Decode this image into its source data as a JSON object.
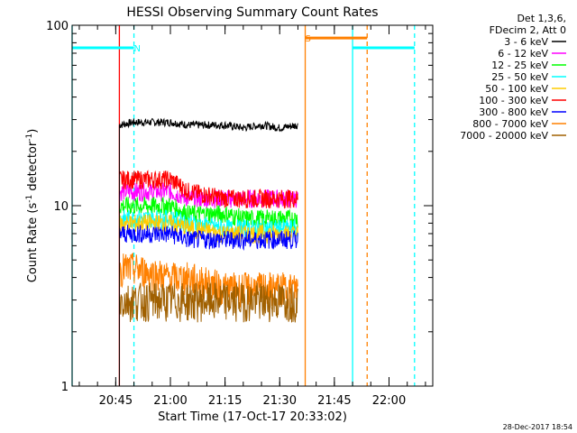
{
  "chart_data": {
    "type": "line",
    "title": "HESSI Observing Summary Count Rates",
    "xlabel": "Start Time (17-Oct-17 20:33:02)",
    "ylabel": "Count Rate (s",
    "ylabel_sup": "-1",
    "ylabel_tail": " detector",
    "ylabel_sup2": "-1",
    "ylabel_close": ")",
    "y_scale": "log",
    "ylim": [
      1,
      100
    ],
    "xlim": [
      "20:33:02",
      "22:12:00"
    ],
    "y_ticks": [
      "1",
      "10",
      "100"
    ],
    "x_ticks": [
      "20:45",
      "21:00",
      "21:15",
      "21:30",
      "21:45",
      "22:00"
    ],
    "timestamp": "28-Dec-2017 18:54",
    "legend": {
      "placement": "outside-right",
      "header": [
        "Det 1,3,6,",
        "FDecim 2, Att 0"
      ],
      "entries": [
        {
          "label": "3 - 6 keV",
          "color": "#000000"
        },
        {
          "label": "6 - 12 keV",
          "color": "#ff00ff"
        },
        {
          "label": "12 - 25 keV",
          "color": "#00ff00"
        },
        {
          "label": "25 - 50 keV",
          "color": "#00ffff"
        },
        {
          "label": "50 - 100 keV",
          "color": "#ffcc00"
        },
        {
          "label": "100 - 300 keV",
          "color": "#ff0000"
        },
        {
          "label": "300 - 800 keV",
          "color": "#0000ff"
        },
        {
          "label": "800 - 7000 keV",
          "color": "#ff8000"
        },
        {
          "label": "7000 - 20000 keV",
          "color": "#a06000"
        }
      ]
    },
    "annotations": [
      {
        "text": "N",
        "time": "20:49",
        "color": "#00ffff"
      },
      {
        "text": "S",
        "time": "21:36",
        "color": "#ff8000"
      }
    ],
    "night_segments": [
      {
        "start": "20:33:02",
        "end": "20:50",
        "value": 75
      },
      {
        "start": "21:50",
        "end": "22:07",
        "value": 75
      }
    ],
    "saa_segment": {
      "start": "21:37",
      "end": "21:54",
      "value": 85
    },
    "vertical_markers": [
      {
        "time": "20:33:02",
        "color": "#00ffff",
        "style": "solid"
      },
      {
        "time": "20:50",
        "color": "#00ffff",
        "style": "dashed"
      },
      {
        "time": "21:50",
        "color": "#00ffff",
        "style": "solid"
      },
      {
        "time": "22:07",
        "color": "#00ffff",
        "style": "dashed"
      },
      {
        "time": "20:46",
        "color": "#ff0000",
        "style": "solid"
      },
      {
        "time": "21:37",
        "color": "#ff8000",
        "style": "solid"
      },
      {
        "time": "21:54",
        "color": "#ff8000",
        "style": "dashed"
      }
    ],
    "data_window": {
      "start": "20:46",
      "end": "21:35"
    },
    "series": [
      {
        "name": "3 - 6 keV",
        "color": "#000000",
        "x": [
          "20:46",
          "20:50",
          "21:00",
          "21:05",
          "21:15",
          "21:20",
          "21:25",
          "21:30",
          "21:35"
        ],
        "y": [
          28,
          29,
          29,
          28,
          28,
          27,
          28,
          27,
          28
        ]
      },
      {
        "name": "6 - 12 keV",
        "color": "#ff00ff",
        "x": [
          "20:46",
          "20:50",
          "21:00",
          "21:05",
          "21:15",
          "21:20",
          "21:25",
          "21:30",
          "21:35"
        ],
        "y": [
          12,
          12,
          12,
          11,
          11,
          11,
          11,
          11,
          11
        ]
      },
      {
        "name": "100 - 300 keV",
        "color": "#ff0000",
        "x": [
          "20:46",
          "20:50",
          "21:00",
          "21:05",
          "21:15",
          "21:20",
          "21:25",
          "21:30",
          "21:35"
        ],
        "y": [
          14,
          14,
          14,
          12,
          11,
          11,
          11,
          11,
          11
        ]
      },
      {
        "name": "12 - 25 keV",
        "color": "#00ff00",
        "x": [
          "20:46",
          "20:50",
          "21:00",
          "21:05",
          "21:15",
          "21:20",
          "21:25",
          "21:30",
          "21:35"
        ],
        "y": [
          10,
          10,
          10,
          9,
          9,
          8.5,
          8.5,
          8.5,
          8.5
        ]
      },
      {
        "name": "25 - 50 keV",
        "color": "#00ffff",
        "x": [
          "20:46",
          "20:50",
          "21:00",
          "21:05",
          "21:15",
          "21:20",
          "21:25",
          "21:30",
          "21:35"
        ],
        "y": [
          8.5,
          8.5,
          8.5,
          8,
          7.5,
          7.5,
          7.5,
          7.5,
          7.5
        ]
      },
      {
        "name": "50 - 100 keV",
        "color": "#ffcc00",
        "x": [
          "20:46",
          "20:50",
          "21:00",
          "21:05",
          "21:15",
          "21:20",
          "21:25",
          "21:30",
          "21:35"
        ],
        "y": [
          8,
          8,
          8,
          7.5,
          7,
          7,
          7,
          7,
          7
        ]
      },
      {
        "name": "300 - 800 keV",
        "color": "#0000ff",
        "x": [
          "20:46",
          "20:50",
          "21:00",
          "21:05",
          "21:15",
          "21:20",
          "21:25",
          "21:30",
          "21:35"
        ],
        "y": [
          7,
          7,
          7,
          6.5,
          6.5,
          6.5,
          6.5,
          6.5,
          6.5
        ]
      },
      {
        "name": "800 - 7000 keV",
        "color": "#ff8000",
        "x": [
          "20:46",
          "20:50",
          "21:00",
          "21:05",
          "21:15",
          "21:20",
          "21:25",
          "21:30",
          "21:35"
        ],
        "y": [
          4.5,
          4.5,
          4,
          4,
          3.5,
          3.5,
          3.5,
          3.5,
          3.5
        ]
      },
      {
        "name": "7000 - 20000 keV",
        "color": "#a06000",
        "x": [
          "20:46",
          "20:50",
          "21:00",
          "21:05",
          "21:15",
          "21:20",
          "21:25",
          "21:30",
          "21:35"
        ],
        "y": [
          3,
          3,
          3,
          3,
          3,
          3,
          3,
          3,
          3
        ]
      }
    ]
  }
}
